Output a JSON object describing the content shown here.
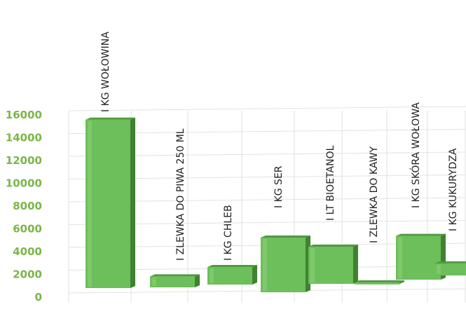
{
  "chart_data": {
    "type": "bar",
    "title": "",
    "xlabel": "",
    "ylabel": "",
    "categories": [
      "I KG WOŁOWINA",
      "I ZLEWKA DO PIWA 250 ML",
      "I KG CHLEB",
      "I KG SER",
      "I LT BIOETANOL",
      "I ZLEWKA DO KAWY",
      "I KG SKÓRA WOŁOWA",
      "I KG KUKURYDZA"
    ],
    "values": [
      15400,
      1000,
      1600,
      5000,
      3400,
      140,
      4000,
      1100
    ],
    "ylim": [
      0,
      16000
    ],
    "yticks": [
      "0",
      "2000",
      "4000",
      "6000",
      "8000",
      "10000",
      "12000",
      "14000",
      "16000"
    ],
    "grid": true,
    "legend": "none",
    "colors": {
      "bar": "#6cbf5a",
      "bar_top": "#4f9a3f",
      "bar_side": "#3f8230",
      "tick_labels": "#7ab648",
      "grid": "#e2e2e2"
    }
  }
}
